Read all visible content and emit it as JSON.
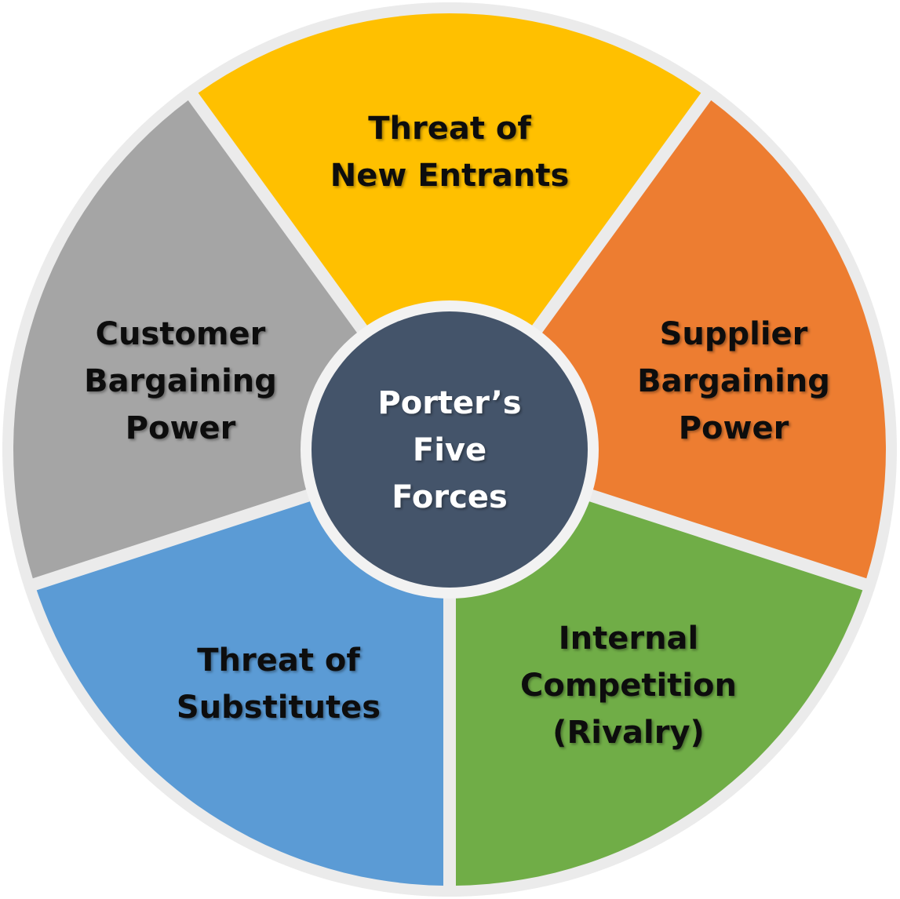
{
  "center": {
    "lines": [
      "Porter’s",
      "Five",
      "Forces"
    ],
    "color": "#44546a"
  },
  "segments": [
    {
      "id": "new-entrants",
      "lines": [
        "Threat of",
        "New Entrants"
      ],
      "color": "#ffc000"
    },
    {
      "id": "supplier-power",
      "lines": [
        "Supplier",
        "Bargaining",
        "Power"
      ],
      "color": "#ed7d31"
    },
    {
      "id": "internal-competition",
      "lines": [
        "Internal",
        "Competition",
        "(Rivalry)"
      ],
      "color": "#70ad47"
    },
    {
      "id": "substitutes",
      "lines": [
        "Threat of",
        "Substitutes"
      ],
      "color": "#5b9bd5"
    },
    {
      "id": "customer-power",
      "lines": [
        "Customer",
        "Bargaining",
        "Power"
      ],
      "color": "#a5a5a5"
    }
  ],
  "ring_color": "#ebebeb",
  "gap_color": "#f2f2f2"
}
